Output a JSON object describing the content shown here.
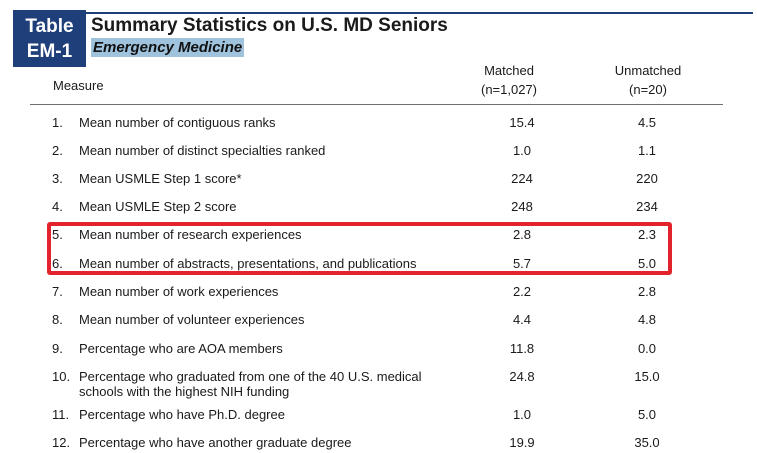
{
  "header": {
    "table_tag_line1": "Table",
    "table_tag_line2": "EM-1",
    "title": "Summary Statistics on U.S. MD Seniors",
    "subtitle": "Emergency Medicine"
  },
  "columns": {
    "measure": "Measure",
    "matched_label": "Matched",
    "matched_n": "(n=1,027)",
    "unmatched_label": "Unmatched",
    "unmatched_n": "(n=20)"
  },
  "rows": [
    {
      "num": "1.",
      "label": "Mean number of contiguous ranks",
      "matched": "15.4",
      "unmatched": "4.5"
    },
    {
      "num": "2.",
      "label": "Mean number of distinct specialties ranked",
      "matched": "1.0",
      "unmatched": "1.1"
    },
    {
      "num": "3.",
      "label": "Mean USMLE Step 1 score*",
      "matched": "224",
      "unmatched": "220"
    },
    {
      "num": "4.",
      "label": "Mean USMLE Step 2 score",
      "matched": "248",
      "unmatched": "234"
    },
    {
      "num": "5.",
      "label": "Mean number of research experiences",
      "matched": "2.8",
      "unmatched": "2.3"
    },
    {
      "num": "6.",
      "label": "Mean number of abstracts, presentations, and publications",
      "matched": "5.7",
      "unmatched": "5.0"
    },
    {
      "num": "7.",
      "label": "Mean number of work experiences",
      "matched": "2.2",
      "unmatched": "2.8"
    },
    {
      "num": "8.",
      "label": "Mean number of volunteer experiences",
      "matched": "4.4",
      "unmatched": "4.8"
    },
    {
      "num": "9.",
      "label": "Percentage who are AOA members",
      "matched": "11.8",
      "unmatched": "0.0"
    },
    {
      "num": "10.",
      "label": "Percentage who graduated from one of the 40 U.S. medical schools with the highest NIH funding",
      "matched": "24.8",
      "unmatched": "15.0"
    },
    {
      "num": "11.",
      "label": "Percentage who have Ph.D. degree",
      "matched": "1.0",
      "unmatched": "5.0"
    },
    {
      "num": "12.",
      "label": "Percentage who have another graduate degree",
      "matched": "19.9",
      "unmatched": "35.0"
    }
  ],
  "colors": {
    "tag_background": "#1f3f7a",
    "subtitle_highlight": "#9fc2dd",
    "annotation_box": "#e3232b"
  }
}
